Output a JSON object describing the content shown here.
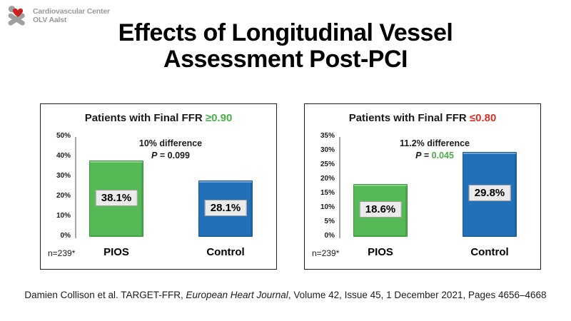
{
  "logo": {
    "line1": "Cardiovascular Center",
    "line2": "OLV Aalst",
    "heart_color": "#cc1f1f",
    "gray_color": "#a0a0a0"
  },
  "title": {
    "lines": [
      "Effects of Longitudinal Vessel",
      "Assessment Post-PCI"
    ]
  },
  "chart_data": [
    {
      "type": "bar",
      "title_prefix": "Patients with Final FFR ",
      "threshold": "≥0.90",
      "threshold_color": "#4aad49",
      "categories": [
        "PIOS",
        "Control"
      ],
      "values": [
        38.1,
        28.1
      ],
      "value_labels": [
        "38.1%",
        "28.1%"
      ],
      "bar_colors": [
        "#55b955",
        "#2271b8"
      ],
      "bar_border_colors": [
        "#379937",
        "#175d97"
      ],
      "ylim": [
        0,
        50
      ],
      "yticks": [
        "50%",
        "40%",
        "30%",
        "20%",
        "10%",
        "0%"
      ],
      "annotation": {
        "line1": "10% difference",
        "p_label": "P",
        "p_eq": " = ",
        "p_value": "0.099",
        "p_value_color": "#1a1a1a"
      },
      "n_label": "n=239*"
    },
    {
      "type": "bar",
      "title_prefix": "Patients with Final FFR ",
      "threshold": "≤0.80",
      "threshold_color": "#d92f27",
      "categories": [
        "PIOS",
        "Control"
      ],
      "values": [
        18.6,
        29.8
      ],
      "value_labels": [
        "18.6%",
        "29.8%"
      ],
      "bar_colors": [
        "#55b955",
        "#2271b8"
      ],
      "bar_border_colors": [
        "#379937",
        "#175d97"
      ],
      "ylim": [
        0,
        35
      ],
      "yticks": [
        "35%",
        "30%",
        "25%",
        "20%",
        "15%",
        "10%",
        "5%",
        "0%"
      ],
      "annotation": {
        "line1": "11.2% difference",
        "p_label": "P",
        "p_eq": " = ",
        "p_value": "0.045",
        "p_value_color": "#4aad49"
      },
      "n_label": "n=239*"
    }
  ],
  "citation": {
    "segments": [
      {
        "text": "Damien Collison et al. TARGET-FFR, ",
        "italic": false
      },
      {
        "text": "European Heart Journal",
        "italic": true
      },
      {
        "text": ", Volume 42, Issue 45, 1 December 2021, Pages 4656–4668",
        "italic": false
      }
    ]
  }
}
